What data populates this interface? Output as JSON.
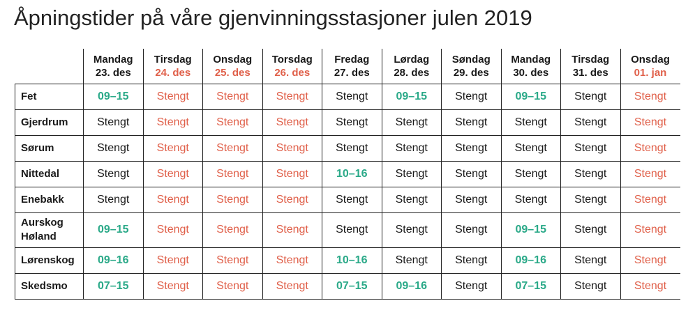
{
  "title": "Åpningstider på våre gjenvinningsstasjoner julen 2019",
  "colors": {
    "open": "#2aa988",
    "holiday_red": "#e0604a",
    "text": "#1a1a1a"
  },
  "days": [
    {
      "name": "Mandag",
      "date": "23. des",
      "holiday": false
    },
    {
      "name": "Tirsdag",
      "date": "24. des",
      "holiday": true
    },
    {
      "name": "Onsdag",
      "date": "25. des",
      "holiday": true
    },
    {
      "name": "Torsdag",
      "date": "26. des",
      "holiday": true
    },
    {
      "name": "Fredag",
      "date": "27. des",
      "holiday": false
    },
    {
      "name": "Lørdag",
      "date": "28. des",
      "holiday": false
    },
    {
      "name": "Søndag",
      "date": "29. des",
      "holiday": false
    },
    {
      "name": "Mandag",
      "date": "30. des",
      "holiday": false
    },
    {
      "name": "Tirsdag",
      "date": "31. des",
      "holiday": false
    },
    {
      "name": "Onsdag",
      "date": "01. jan",
      "holiday": true
    }
  ],
  "stations": [
    {
      "name": "Fet",
      "hours": [
        "09–15",
        "Stengt",
        "Stengt",
        "Stengt",
        "Stengt",
        "09–15",
        "Stengt",
        "09–15",
        "Stengt",
        "Stengt"
      ]
    },
    {
      "name": "Gjerdrum",
      "hours": [
        "Stengt",
        "Stengt",
        "Stengt",
        "Stengt",
        "Stengt",
        "Stengt",
        "Stengt",
        "Stengt",
        "Stengt",
        "Stengt"
      ]
    },
    {
      "name": "Sørum",
      "hours": [
        "Stengt",
        "Stengt",
        "Stengt",
        "Stengt",
        "Stengt",
        "Stengt",
        "Stengt",
        "Stengt",
        "Stengt",
        "Stengt"
      ]
    },
    {
      "name": "Nittedal",
      "hours": [
        "Stengt",
        "Stengt",
        "Stengt",
        "Stengt",
        "10–16",
        "Stengt",
        "Stengt",
        "Stengt",
        "Stengt",
        "Stengt"
      ]
    },
    {
      "name": "Enebakk",
      "hours": [
        "Stengt",
        "Stengt",
        "Stengt",
        "Stengt",
        "Stengt",
        "Stengt",
        "Stengt",
        "Stengt",
        "Stengt",
        "Stengt"
      ]
    },
    {
      "name": "Aurskog Høland",
      "name_lines": [
        "Aurskog",
        "Høland"
      ],
      "hours": [
        "09–15",
        "Stengt",
        "Stengt",
        "Stengt",
        "Stengt",
        "Stengt",
        "Stengt",
        "09–15",
        "Stengt",
        "Stengt"
      ]
    },
    {
      "name": "Lørenskog",
      "hours": [
        "09–16",
        "Stengt",
        "Stengt",
        "Stengt",
        "10–16",
        "Stengt",
        "Stengt",
        "09–16",
        "Stengt",
        "Stengt"
      ]
    },
    {
      "name": "Skedsmo",
      "hours": [
        "07–15",
        "Stengt",
        "Stengt",
        "Stengt",
        "07–15",
        "09–16",
        "Stengt",
        "07–15",
        "Stengt",
        "Stengt"
      ]
    }
  ]
}
